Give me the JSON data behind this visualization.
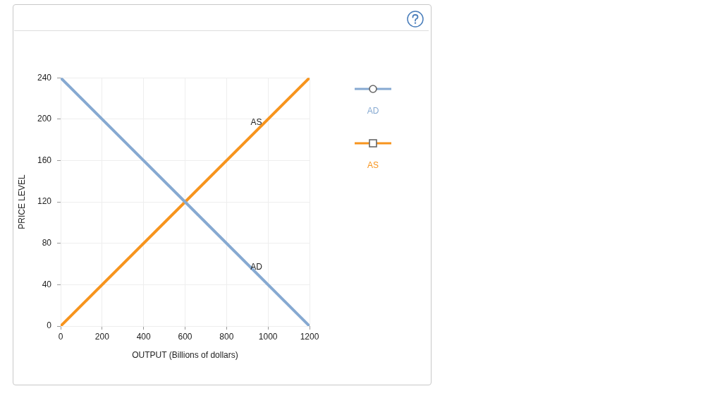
{
  "chart_data": {
    "type": "line",
    "xlabel": "OUTPUT (Billions of dollars)",
    "ylabel": "PRICE LEVEL",
    "x": [
      0,
      1200
    ],
    "series": [
      {
        "name": "AD",
        "color": "#86a9d1",
        "values": [
          240,
          0
        ]
      },
      {
        "name": "AS",
        "color": "#f7941d",
        "values": [
          0,
          240
        ]
      }
    ],
    "annotations": [
      {
        "text": "AS",
        "x": 950,
        "y": 190
      },
      {
        "text": "AD",
        "x": 950,
        "y": 50
      }
    ],
    "xlim": [
      0,
      1200
    ],
    "xticks": [
      0,
      200,
      400,
      600,
      800,
      1000,
      1200
    ],
    "ylim": [
      0,
      240
    ],
    "yticks": [
      0,
      40,
      80,
      120,
      160,
      200,
      240
    ],
    "grid": true,
    "legend": "right"
  }
}
